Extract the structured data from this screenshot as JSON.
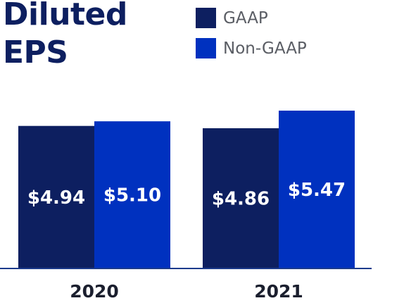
{
  "chart_data": {
    "type": "bar",
    "title": "Diluted EPS",
    "title_lines": [
      "Diluted",
      "EPS"
    ],
    "categories": [
      "2020",
      "2021"
    ],
    "series": [
      {
        "name": "GAAP",
        "values": [
          4.94,
          4.86
        ],
        "labels": [
          "$4.94",
          "$4.86"
        ],
        "color": "#0d1f60"
      },
      {
        "name": "Non-GAAP",
        "values": [
          5.1,
          5.47
        ],
        "labels": [
          "$5.10",
          "$5.47"
        ],
        "color": "#0031bf"
      }
    ],
    "xlabel": "",
    "ylabel": "",
    "ylim": [
      0,
      5.47
    ],
    "grid": false,
    "legend_position": "top-right",
    "axis_color": "#1c3b8c"
  }
}
